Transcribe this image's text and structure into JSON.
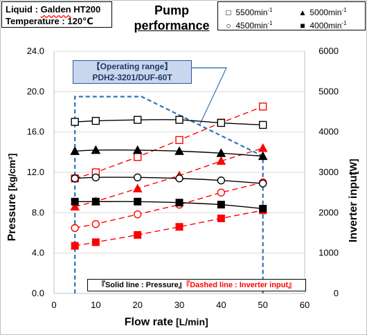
{
  "conditions": {
    "liquid_label": "Liquid",
    "liquid_sep": " : ",
    "liquid_name": "Galden",
    "liquid_grade": " HT200",
    "temperature_label": "Temperature",
    "temperature_sep": " : ",
    "temperature_value": "120℃"
  },
  "title": {
    "line1": "Pump",
    "line2": "performance"
  },
  "legend": {
    "items": [
      {
        "symbol": "□",
        "speed": "5500min",
        "unit_sup": "-1"
      },
      {
        "symbol": "▲",
        "speed": "5000min",
        "unit_sup": "-1"
      },
      {
        "symbol": "○",
        "speed": "4500min",
        "unit_sup": "-1"
      },
      {
        "symbol": "■",
        "speed": "4000min",
        "unit_sup": "-1"
      }
    ]
  },
  "operating_range": {
    "line1": "【Operating range】",
    "line2": "PDH2-3201/DUF-60T"
  },
  "line_note": {
    "solid": "『Solid line : Pressure』",
    "dashed": "『Dashed line : Inverter input』"
  },
  "colors": {
    "pressure": "#000000",
    "inverter": "#ff0000",
    "range": "#2e75b6",
    "range_fill": "#c9d7ee"
  },
  "chart_data": {
    "type": "line",
    "xlabel": "Flow rate",
    "xlabel_unit": "[L/min]",
    "ylabel": "Pressure",
    "ylabel_unit": "[kg/cm²]",
    "y2label": "Inverter input",
    "y2label_unit": "[W]",
    "xlim": [
      0,
      60
    ],
    "ylim": [
      0,
      24
    ],
    "y2lim": [
      0,
      6000
    ],
    "xticks": [
      "0",
      "10",
      "20",
      "30",
      "40",
      "50",
      "60"
    ],
    "yticks": [
      "0.0",
      "4.0",
      "8.0",
      "12.0",
      "16.0",
      "20.0",
      "24.0"
    ],
    "y2ticks": [
      "0",
      "1000",
      "2000",
      "3000",
      "4000",
      "5000",
      "6000"
    ],
    "grid": "horizontal",
    "pressure_series": [
      {
        "name": "5500min-1",
        "marker": "square-open",
        "x": [
          5,
          10,
          20,
          30,
          40,
          50
        ],
        "y": [
          17.0,
          17.1,
          17.2,
          17.2,
          16.9,
          16.7
        ]
      },
      {
        "name": "5000min-1",
        "marker": "triangle-filled",
        "x": [
          5,
          10,
          20,
          30,
          40,
          50
        ],
        "y": [
          14.1,
          14.2,
          14.2,
          14.1,
          13.9,
          13.6
        ]
      },
      {
        "name": "4500min-1",
        "marker": "circle-open",
        "x": [
          5,
          10,
          20,
          30,
          40,
          50
        ],
        "y": [
          11.4,
          11.5,
          11.5,
          11.4,
          11.2,
          10.9
        ]
      },
      {
        "name": "4000min-1",
        "marker": "square-filled",
        "x": [
          5,
          10,
          20,
          30,
          40,
          50
        ],
        "y": [
          9.1,
          9.1,
          9.1,
          9.0,
          8.8,
          8.4
        ]
      }
    ],
    "inverter_series": [
      {
        "name": "5500min-1",
        "marker": "square-open",
        "x": [
          5,
          10,
          20,
          30,
          40,
          50
        ],
        "y": [
          2850,
          3000,
          3380,
          3800,
          4230,
          4630
        ]
      },
      {
        "name": "5000min-1",
        "marker": "triangle-filled",
        "x": [
          5,
          10,
          20,
          30,
          40,
          50
        ],
        "y": [
          2150,
          2280,
          2600,
          2920,
          3280,
          3600
        ]
      },
      {
        "name": "4500min-1",
        "marker": "circle-open",
        "x": [
          5,
          10,
          20,
          30,
          40,
          50
        ],
        "y": [
          1620,
          1720,
          1960,
          2200,
          2500,
          2750
        ]
      },
      {
        "name": "4000min-1",
        "marker": "square-filled",
        "x": [
          5,
          10,
          20,
          30,
          40,
          50
        ],
        "y": [
          1180,
          1270,
          1450,
          1650,
          1860,
          2060
        ]
      }
    ],
    "operating_range": {
      "x": [
        5,
        5,
        21,
        50,
        50
      ],
      "y": [
        0,
        19.5,
        19.5,
        13.6,
        0
      ]
    }
  }
}
